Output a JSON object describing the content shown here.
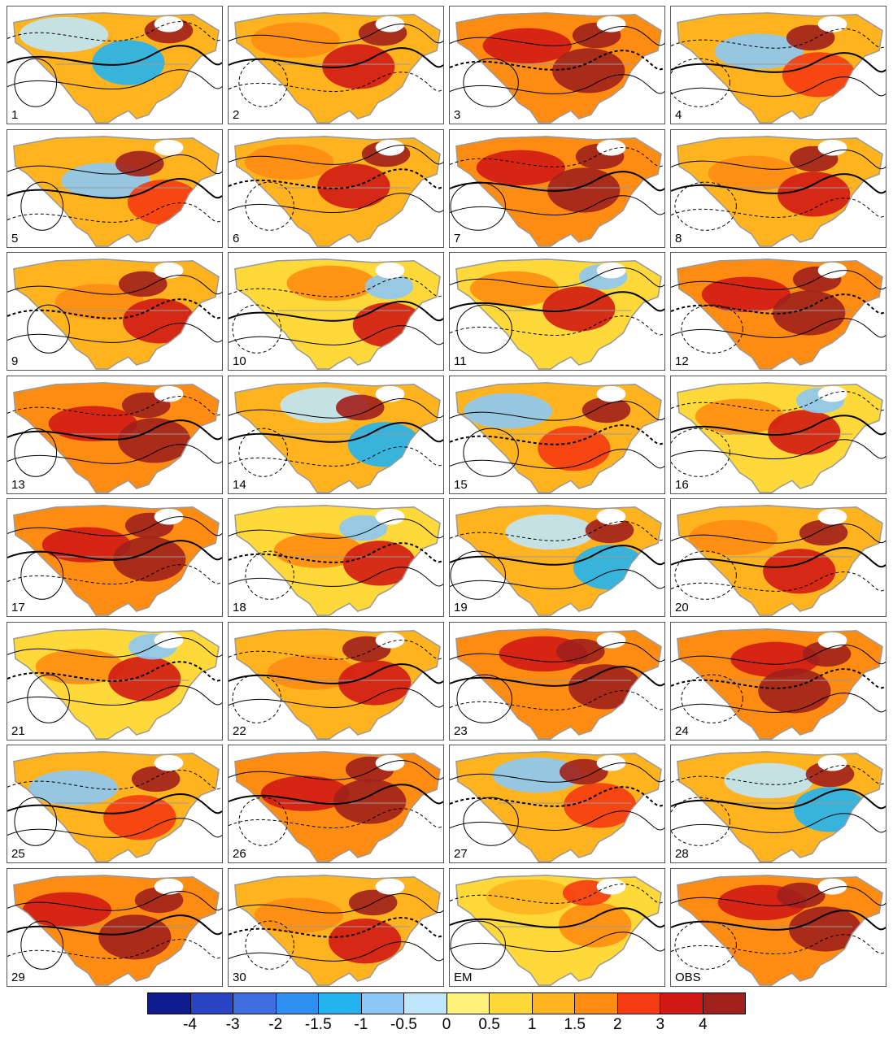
{
  "panels": [
    {
      "label": "1",
      "scheme": 0
    },
    {
      "label": "2",
      "scheme": 1
    },
    {
      "label": "3",
      "scheme": 2
    },
    {
      "label": "4",
      "scheme": 3
    },
    {
      "label": "5",
      "scheme": 3
    },
    {
      "label": "6",
      "scheme": 1
    },
    {
      "label": "7",
      "scheme": 2
    },
    {
      "label": "8",
      "scheme": 1
    },
    {
      "label": "9",
      "scheme": 1
    },
    {
      "label": "10",
      "scheme": 4
    },
    {
      "label": "11",
      "scheme": 4
    },
    {
      "label": "12",
      "scheme": 2
    },
    {
      "label": "13",
      "scheme": 2
    },
    {
      "label": "14",
      "scheme": 0
    },
    {
      "label": "15",
      "scheme": 3
    },
    {
      "label": "16",
      "scheme": 4
    },
    {
      "label": "17",
      "scheme": 2
    },
    {
      "label": "18",
      "scheme": 4
    },
    {
      "label": "19",
      "scheme": 0
    },
    {
      "label": "20",
      "scheme": 1
    },
    {
      "label": "21",
      "scheme": 4
    },
    {
      "label": "22",
      "scheme": 1
    },
    {
      "label": "23",
      "scheme": 2
    },
    {
      "label": "24",
      "scheme": 2
    },
    {
      "label": "25",
      "scheme": 3
    },
    {
      "label": "26",
      "scheme": 2
    },
    {
      "label": "27",
      "scheme": 3
    },
    {
      "label": "28",
      "scheme": 0
    },
    {
      "label": "29",
      "scheme": 2
    },
    {
      "label": "30",
      "scheme": 1
    },
    {
      "label": "EM",
      "scheme": 5
    },
    {
      "label": "OBS",
      "scheme": 2
    }
  ],
  "colorbar": {
    "colors": [
      "#0f1b8f",
      "#2a45c4",
      "#3d6fe0",
      "#2f8ff0",
      "#22b3f0",
      "#8cc8f5",
      "#bfe6fa",
      "#fff27a",
      "#ffd93a",
      "#ffb31f",
      "#ff8c12",
      "#f53b12",
      "#d11a14",
      "#a0201c"
    ],
    "tick_labels": [
      "-4",
      "-3",
      "-2",
      "-1.5",
      "-1",
      "-0.5",
      "0",
      "0.5",
      "1",
      "1.5",
      "2",
      "3",
      "4"
    ]
  }
}
